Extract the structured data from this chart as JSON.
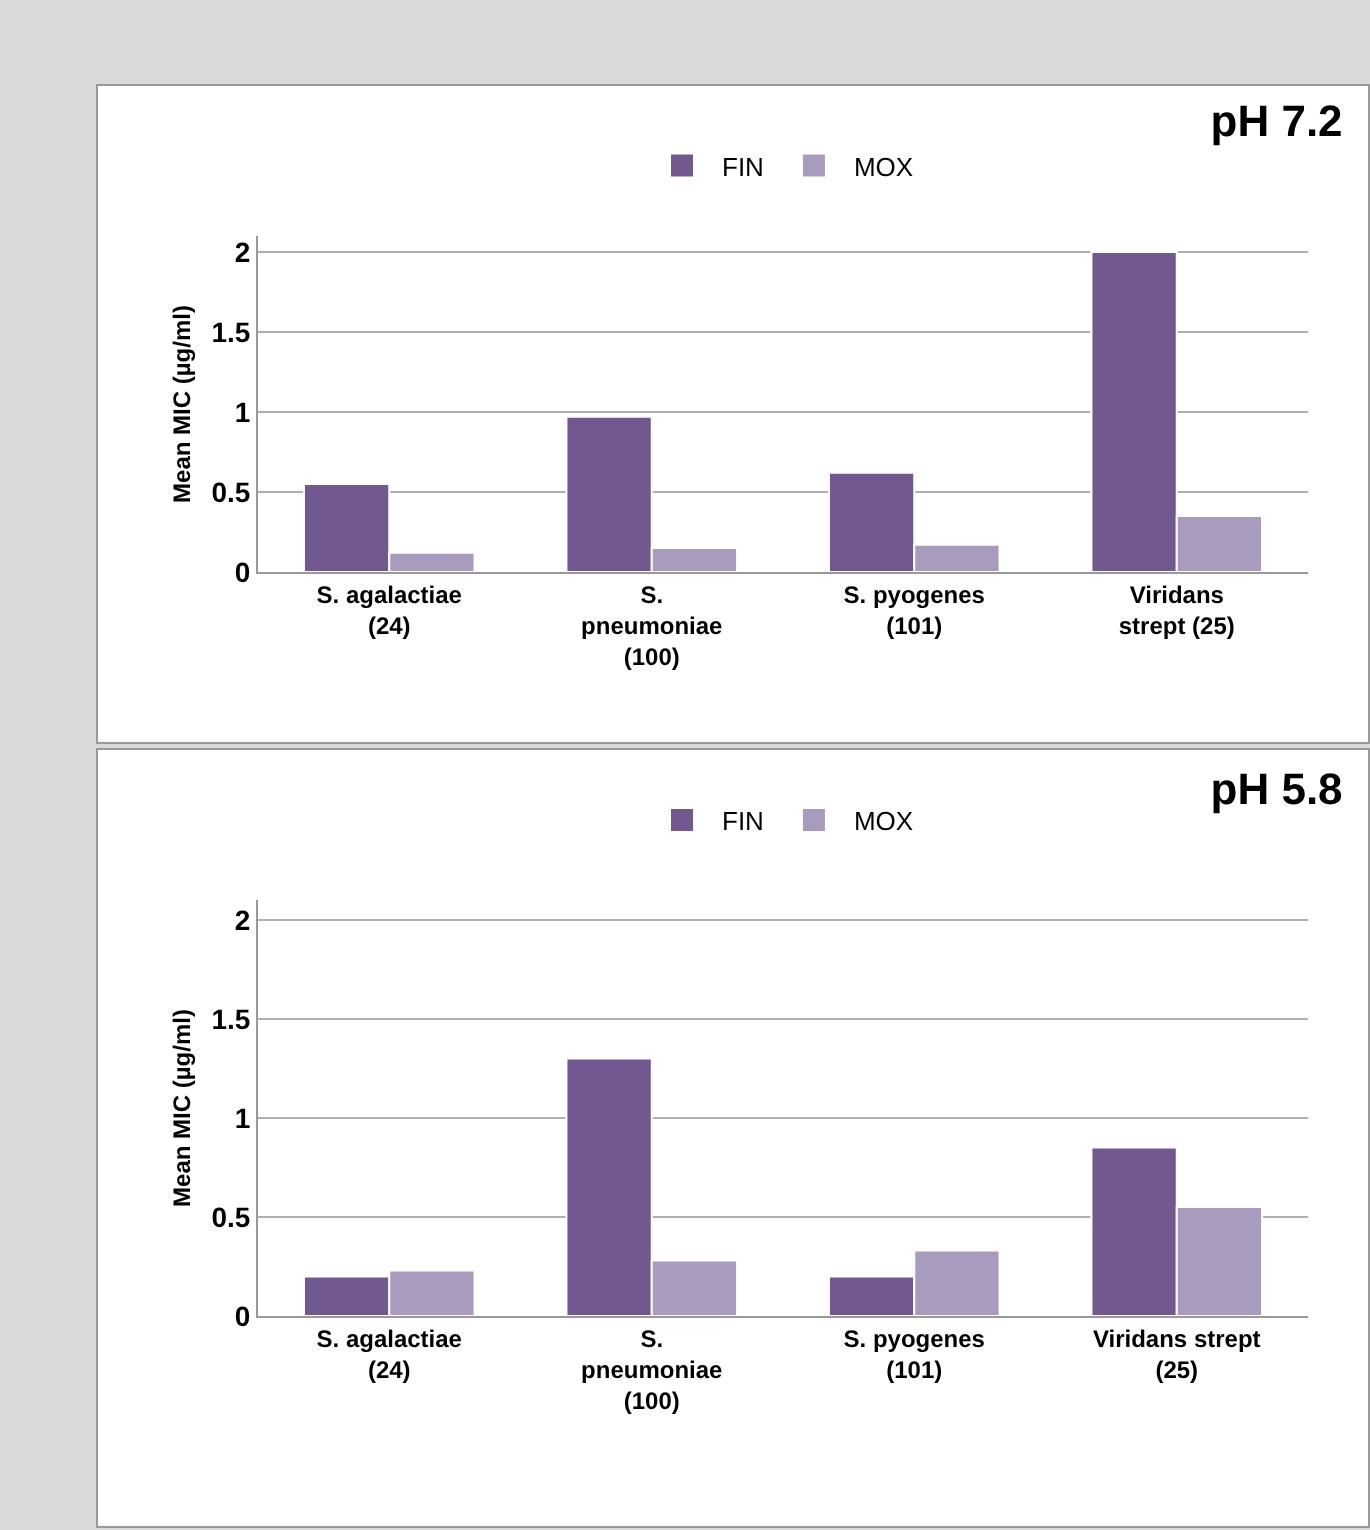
{
  "chart_data": [
    {
      "type": "bar",
      "title": "pH 7.2",
      "ylabel": "Mean MIC (µg/ml)",
      "categories": [
        "S. agalactiae\n(24)",
        "S.\npneumoniae\n(100)",
        "S. pyogenes\n(101)",
        "Viridans\nstrept (25)"
      ],
      "series": [
        {
          "name": "FIN",
          "color": "#71588f",
          "values": [
            0.55,
            0.97,
            0.62,
            2.0
          ]
        },
        {
          "name": "MOX",
          "color": "#a99bbd",
          "values": [
            0.12,
            0.15,
            0.17,
            0.35
          ]
        }
      ],
      "ylim": [
        0,
        2.1
      ],
      "yticks": [
        0,
        0.5,
        1,
        1.5,
        2
      ],
      "grid": "y",
      "legend": "top"
    },
    {
      "type": "bar",
      "title": "pH 5.8",
      "ylabel": "Mean MIC (µg/ml)",
      "categories": [
        "S. agalactiae\n(24)",
        "S.\npneumoniae\n(100)",
        "S. pyogenes\n(101)",
        "Viridans strept\n(25)"
      ],
      "series": [
        {
          "name": "FIN",
          "color": "#71588f",
          "values": [
            0.2,
            1.3,
            0.2,
            0.85
          ]
        },
        {
          "name": "MOX",
          "color": "#a99bbd",
          "values": [
            0.23,
            0.28,
            0.33,
            0.55
          ]
        }
      ],
      "ylim": [
        0,
        2.1
      ],
      "yticks": [
        0,
        0.5,
        1,
        1.5,
        2
      ],
      "grid": "y",
      "legend": "top"
    }
  ]
}
